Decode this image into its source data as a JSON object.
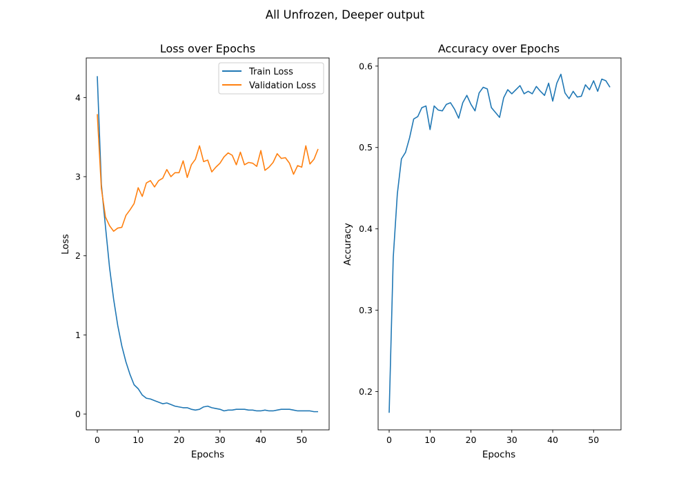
{
  "figure_title": "All Unfrozen, Deeper output",
  "colors": {
    "train": "#1f77b4",
    "validation": "#ff7f0e",
    "accuracy": "#1f77b4"
  },
  "chart_data": [
    {
      "type": "line",
      "title": "Loss over Epochs",
      "xlabel": "Epochs",
      "ylabel": "Loss",
      "xlim": [
        -2.7,
        56.7
      ],
      "ylim": [
        -0.2,
        4.5
      ],
      "xticks": [
        0,
        10,
        20,
        30,
        40,
        50
      ],
      "yticks": [
        0,
        1,
        2,
        3,
        4
      ],
      "grid": false,
      "legend": "top-right",
      "series": [
        {
          "name": "Train Loss",
          "color": "#1f77b4",
          "x": [
            0,
            1,
            2,
            3,
            4,
            5,
            6,
            7,
            8,
            9,
            10,
            11,
            12,
            13,
            14,
            15,
            16,
            17,
            18,
            19,
            20,
            21,
            22,
            23,
            24,
            25,
            26,
            27,
            28,
            29,
            30,
            31,
            32,
            33,
            34,
            35,
            36,
            37,
            38,
            39,
            40,
            41,
            42,
            43,
            44,
            45,
            46,
            47,
            48,
            49,
            50,
            51,
            52,
            53,
            54
          ],
          "values": [
            4.27,
            2.9,
            2.37,
            1.85,
            1.45,
            1.12,
            0.86,
            0.66,
            0.5,
            0.37,
            0.32,
            0.24,
            0.2,
            0.19,
            0.17,
            0.15,
            0.13,
            0.14,
            0.12,
            0.1,
            0.09,
            0.08,
            0.08,
            0.06,
            0.05,
            0.06,
            0.09,
            0.1,
            0.08,
            0.07,
            0.06,
            0.04,
            0.05,
            0.05,
            0.06,
            0.06,
            0.06,
            0.05,
            0.05,
            0.04,
            0.04,
            0.05,
            0.04,
            0.04,
            0.05,
            0.06,
            0.06,
            0.06,
            0.05,
            0.04,
            0.04,
            0.04,
            0.04,
            0.03,
            0.03
          ]
        },
        {
          "name": "Validation Loss",
          "color": "#ff7f0e",
          "x": [
            0,
            1,
            2,
            3,
            4,
            5,
            6,
            7,
            8,
            9,
            10,
            11,
            12,
            13,
            14,
            15,
            16,
            17,
            18,
            19,
            20,
            21,
            22,
            23,
            24,
            25,
            26,
            27,
            28,
            29,
            30,
            31,
            32,
            33,
            34,
            35,
            36,
            37,
            38,
            39,
            40,
            41,
            42,
            43,
            44,
            45,
            46,
            47,
            48,
            49,
            50,
            51,
            52,
            53,
            54
          ],
          "values": [
            3.79,
            2.85,
            2.49,
            2.38,
            2.31,
            2.35,
            2.36,
            2.51,
            2.58,
            2.66,
            2.86,
            2.75,
            2.92,
            2.95,
            2.87,
            2.95,
            2.98,
            3.09,
            3.0,
            3.05,
            3.05,
            3.2,
            2.99,
            3.15,
            3.22,
            3.39,
            3.19,
            3.21,
            3.06,
            3.12,
            3.17,
            3.25,
            3.3,
            3.27,
            3.15,
            3.31,
            3.15,
            3.18,
            3.17,
            3.13,
            3.33,
            3.08,
            3.12,
            3.18,
            3.29,
            3.23,
            3.24,
            3.17,
            3.03,
            3.14,
            3.12,
            3.39,
            3.16,
            3.22,
            3.35
          ]
        }
      ]
    },
    {
      "type": "line",
      "title": "Accuracy over Epochs",
      "xlabel": "Epochs",
      "ylabel": "Accuracy",
      "xlim": [
        -2.7,
        56.7
      ],
      "ylim": [
        0.153,
        0.61
      ],
      "xticks": [
        0,
        10,
        20,
        30,
        40,
        50
      ],
      "yticks": [
        0.2,
        0.3,
        0.4,
        0.5,
        0.6
      ],
      "grid": false,
      "series": [
        {
          "color": "#1f77b4",
          "x": [
            0,
            1,
            2,
            3,
            4,
            5,
            6,
            7,
            8,
            9,
            10,
            11,
            12,
            13,
            14,
            15,
            16,
            17,
            18,
            19,
            20,
            21,
            22,
            23,
            24,
            25,
            26,
            27,
            28,
            29,
            30,
            31,
            32,
            33,
            34,
            35,
            36,
            37,
            38,
            39,
            40,
            41,
            42,
            43,
            44,
            45,
            46,
            47,
            48,
            49,
            50,
            51,
            52,
            53,
            54
          ],
          "values": [
            0.174,
            0.365,
            0.443,
            0.486,
            0.494,
            0.512,
            0.535,
            0.538,
            0.549,
            0.551,
            0.522,
            0.551,
            0.546,
            0.545,
            0.553,
            0.555,
            0.547,
            0.536,
            0.555,
            0.564,
            0.553,
            0.545,
            0.567,
            0.574,
            0.572,
            0.549,
            0.543,
            0.537,
            0.561,
            0.571,
            0.566,
            0.571,
            0.576,
            0.566,
            0.569,
            0.566,
            0.575,
            0.569,
            0.564,
            0.579,
            0.557,
            0.579,
            0.59,
            0.567,
            0.56,
            0.569,
            0.562,
            0.563,
            0.577,
            0.571,
            0.582,
            0.569,
            0.584,
            0.582,
            0.574
          ]
        }
      ]
    }
  ]
}
